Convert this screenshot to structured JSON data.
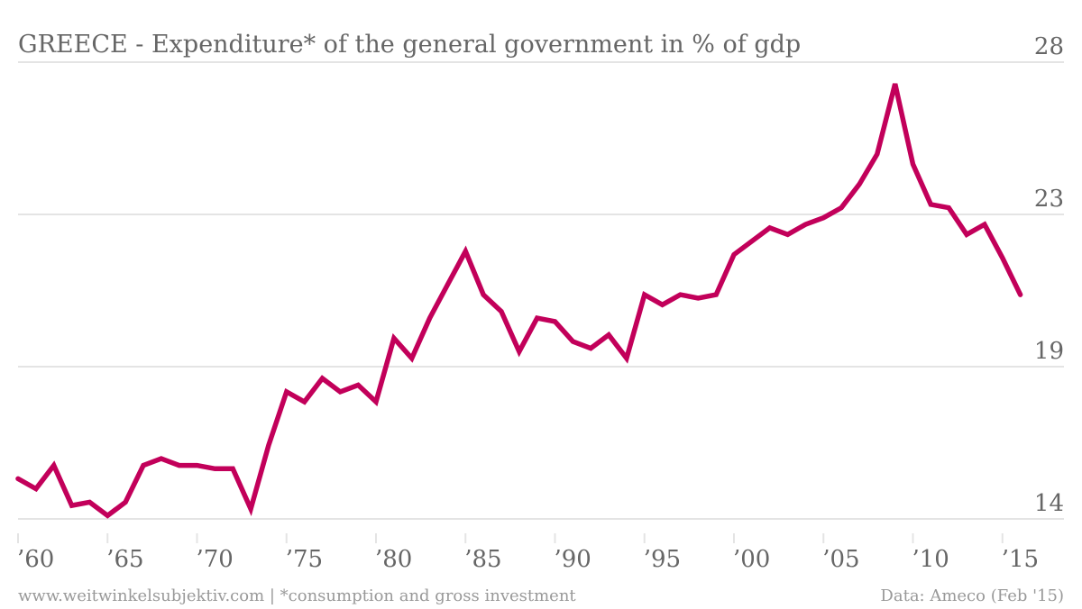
{
  "chart_data": {
    "type": "line",
    "title": "GREECE - Expenditure* of the general government in % of gdp",
    "xlabel": "",
    "ylabel": "",
    "y_axis_position": "right",
    "ylim": [
      14.2,
      27.85
    ],
    "xlim": [
      1960,
      2016.5
    ],
    "y_ticks": [
      {
        "value": 14.2,
        "label": "14"
      },
      {
        "value": 18.75,
        "label": "19"
      },
      {
        "value": 23.3,
        "label": "23"
      },
      {
        "value": 27.85,
        "label": "28"
      }
    ],
    "x_ticks": [
      {
        "value": 1960,
        "label": "’60"
      },
      {
        "value": 1965,
        "label": "’65"
      },
      {
        "value": 1970,
        "label": "’70"
      },
      {
        "value": 1975,
        "label": "’75"
      },
      {
        "value": 1980,
        "label": "’80"
      },
      {
        "value": 1985,
        "label": "’85"
      },
      {
        "value": 1990,
        "label": "’90"
      },
      {
        "value": 1995,
        "label": "’95"
      },
      {
        "value": 2000,
        "label": "’00"
      },
      {
        "value": 2005,
        "label": "’05"
      },
      {
        "value": 2010,
        "label": "’10"
      },
      {
        "value": 2015,
        "label": "’15"
      }
    ],
    "grid": true,
    "legend": "none",
    "series": [
      {
        "name": "Expenditure of the general government (% of GDP)",
        "color": "#C2005A",
        "x": [
          1960,
          1961,
          1962,
          1963,
          1964,
          1965,
          1966,
          1967,
          1968,
          1969,
          1970,
          1971,
          1972,
          1973,
          1974,
          1975,
          1976,
          1977,
          1978,
          1979,
          1980,
          1981,
          1982,
          1983,
          1984,
          1985,
          1986,
          1987,
          1988,
          1989,
          1990,
          1991,
          1992,
          1993,
          1994,
          1995,
          1996,
          1997,
          1998,
          1999,
          2000,
          2001,
          2002,
          2003,
          2004,
          2005,
          2006,
          2007,
          2008,
          2009,
          2010,
          2011,
          2012,
          2013,
          2014,
          2015,
          2016
        ],
        "values": [
          15.4,
          15.1,
          15.8,
          14.6,
          14.7,
          14.3,
          14.7,
          15.8,
          16.0,
          15.8,
          15.8,
          15.7,
          15.7,
          14.5,
          16.4,
          18.0,
          17.7,
          18.4,
          18.0,
          18.2,
          17.7,
          19.6,
          19.0,
          20.2,
          21.2,
          22.2,
          20.9,
          20.4,
          19.2,
          20.2,
          20.1,
          19.5,
          19.3,
          19.7,
          19.0,
          20.9,
          20.6,
          20.9,
          20.8,
          20.9,
          22.1,
          22.5,
          22.9,
          22.7,
          23.0,
          23.2,
          23.5,
          24.2,
          25.1,
          27.2,
          24.8,
          23.6,
          23.5,
          22.7,
          23.0,
          22.0,
          20.9
        ]
      }
    ]
  },
  "footer": {
    "source_left": "www.weitwinkelsubjektiv.com | *consumption and gross investment",
    "source_right": "Data: Ameco (Feb '15)"
  }
}
